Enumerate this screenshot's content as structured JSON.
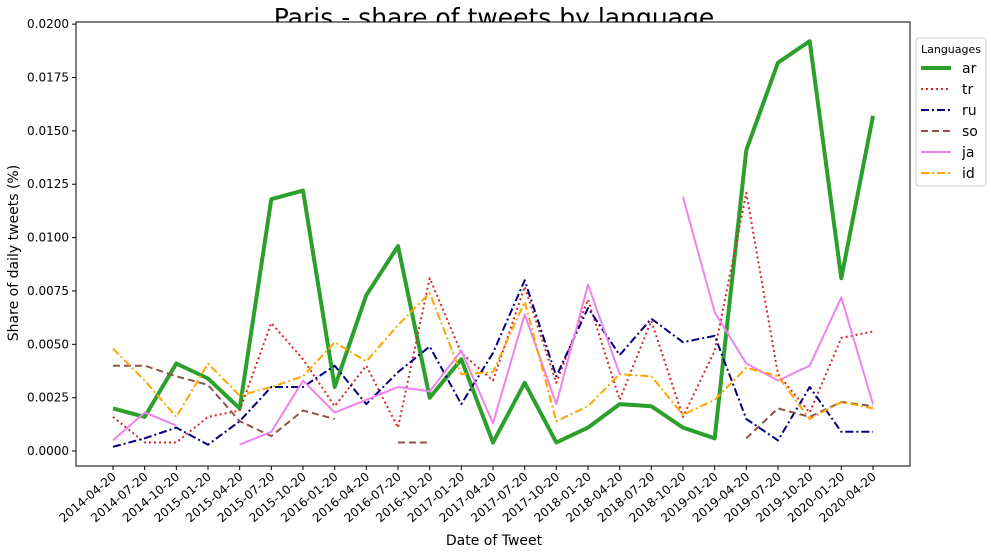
{
  "chart_data": {
    "type": "line",
    "title": "Paris - share of tweets by language",
    "xlabel": "Date of Tweet",
    "ylabel": "Share of daily tweets (%)",
    "ylim": [
      -0.0007,
      0.0201
    ],
    "yticks": [
      "0.0000",
      "0.0025",
      "0.0050",
      "0.0075",
      "0.0100",
      "0.0125",
      "0.0150",
      "0.0175",
      "0.0200"
    ],
    "ytick_values": [
      0,
      0.0025,
      0.005,
      0.0075,
      0.01,
      0.0125,
      0.015,
      0.0175,
      0.02
    ],
    "grid": false,
    "legend": {
      "title": "Languages",
      "placement": "outside right, top"
    },
    "x": [
      "2014-04-20",
      "2014-07-20",
      "2014-10-20",
      "2015-01-20",
      "2015-04-20",
      "2015-07-20",
      "2015-10-20",
      "2016-01-20",
      "2016-04-20",
      "2016-07-20",
      "2016-10-20",
      "2017-01-20",
      "2017-04-20",
      "2017-07-20",
      "2017-10-20",
      "2018-01-20",
      "2018-04-20",
      "2018-07-20",
      "2018-10-20",
      "2019-01-20",
      "2019-04-20",
      "2019-07-20",
      "2019-10-20",
      "2020-01-20",
      "2020-04-20"
    ],
    "series": [
      {
        "name": "ar",
        "color": "#2ca02c",
        "style": "solid",
        "width": 4,
        "values": [
          0.002,
          0.0016,
          0.0041,
          0.0034,
          0.002,
          0.0118,
          0.0122,
          0.003,
          0.0073,
          0.0096,
          0.0025,
          0.0043,
          0.0004,
          0.0032,
          0.0004,
          0.0011,
          0.0022,
          0.0021,
          0.0011,
          0.0006,
          0.0141,
          0.0182,
          0.0192,
          0.0081,
          0.0157
        ]
      },
      {
        "name": "tr",
        "color": "#d62728",
        "style": "dotted",
        "width": 2,
        "values": [
          0.0016,
          0.0004,
          0.0004,
          0.0016,
          0.0019,
          0.006,
          0.0043,
          0.0021,
          0.004,
          0.0011,
          0.0081,
          0.0046,
          0.0033,
          0.0077,
          0.0032,
          0.0071,
          0.0024,
          0.0061,
          0.0016,
          0.0047,
          0.0121,
          0.0036,
          0.0018,
          0.0053,
          0.0056
        ]
      },
      {
        "name": "ru",
        "color": "#000080",
        "style": "dashdot",
        "width": 2,
        "values": [
          0.0002,
          0.0006,
          0.0011,
          0.0003,
          0.0014,
          0.003,
          0.003,
          0.004,
          0.0022,
          0.0037,
          0.0049,
          0.0022,
          0.0046,
          0.008,
          0.0035,
          0.0067,
          0.0045,
          0.0062,
          0.0051,
          0.0054,
          0.0015,
          0.0005,
          0.003,
          0.0009,
          0.0009
        ]
      },
      {
        "name": "so",
        "color": "#8c564b",
        "style": "dashed",
        "width": 2,
        "values": [
          0.004,
          0.004,
          0.0035,
          0.0031,
          0.0014,
          0.0007,
          0.0019,
          0.0015,
          null,
          0.0004,
          0.0004,
          null,
          null,
          null,
          null,
          null,
          null,
          null,
          null,
          null,
          0.0006,
          0.002,
          0.0016,
          0.0023,
          0.0021
        ]
      },
      {
        "name": "ja",
        "color": "#ee82ee",
        "style": "solid",
        "width": 2,
        "values": [
          0.0005,
          0.0018,
          0.0012,
          null,
          0.0003,
          0.0009,
          0.0033,
          0.0018,
          0.0024,
          0.003,
          0.0028,
          0.0047,
          0.0013,
          0.0064,
          0.0022,
          0.0078,
          0.0036,
          null,
          0.0119,
          0.0065,
          0.0041,
          0.0033,
          0.004,
          0.0072,
          0.0022
        ]
      },
      {
        "name": "id",
        "color": "#ffa500",
        "style": "dashdot",
        "width": 2,
        "values": [
          0.0048,
          0.0033,
          0.0016,
          0.0041,
          0.0026,
          0.003,
          0.0035,
          0.0051,
          0.0042,
          0.0059,
          0.0074,
          0.0036,
          0.0037,
          0.007,
          0.0014,
          0.0021,
          0.0036,
          0.0035,
          0.0017,
          0.0024,
          0.0039,
          0.0035,
          0.0015,
          0.0023,
          0.002
        ]
      }
    ]
  }
}
